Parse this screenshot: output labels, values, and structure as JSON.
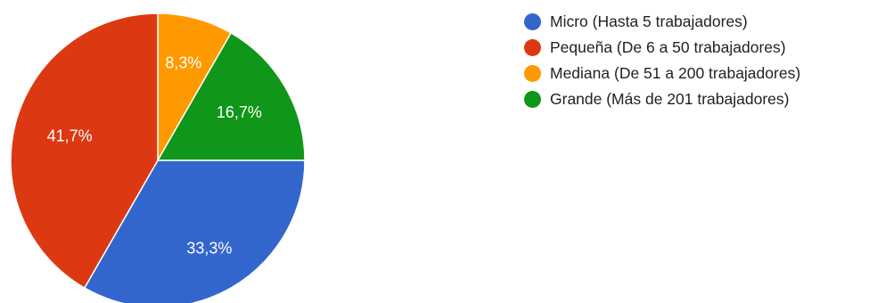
{
  "chart_data": {
    "type": "pie",
    "title": "",
    "legend_position": "right",
    "series": [
      {
        "values": [
          33.3,
          41.7,
          8.3,
          16.7
        ]
      }
    ],
    "categories": [
      "Micro (Hasta 5 trabajadores)",
      "Pequeña (De 6 a 50 trabajadores)",
      "Mediana (De 51 a 200 trabajadores)",
      "Grande (Más de 201 trabajadores)"
    ],
    "data_labels": [
      "33,3%",
      "41,7%",
      "8,3%",
      "16,7%"
    ],
    "colors": [
      "#3366cc",
      "#dc3912",
      "#ff9900",
      "#109618"
    ]
  }
}
